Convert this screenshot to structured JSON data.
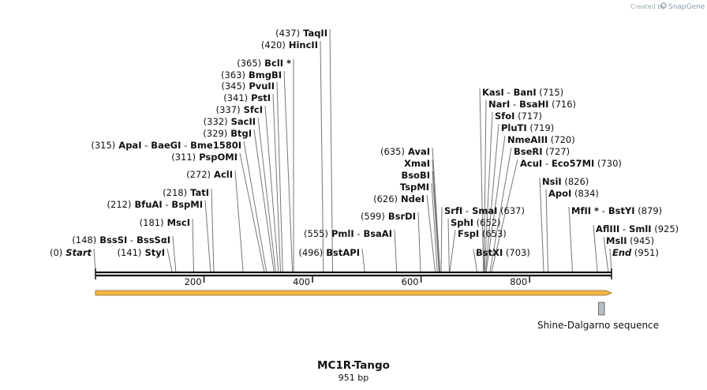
{
  "credit": {
    "prefix": "Created by",
    "brand": "SnapGene"
  },
  "sequence": {
    "name": "MC1R-Tango",
    "length_label": "951 bp",
    "length": 951
  },
  "axis": {
    "ticks": [
      200,
      400,
      600,
      800
    ]
  },
  "feature": {
    "label": "Shine-Dalgarno sequence",
    "start": 927,
    "end": 938
  },
  "cut_sites": [
    {
      "pos": 0,
      "parts": [
        {
          "t": "(0)",
          "s": "pos"
        },
        {
          "t": "Start",
          "s": "ital"
        }
      ]
    },
    {
      "pos": 141,
      "parts": [
        {
          "t": "(141)",
          "s": "pos"
        },
        {
          "t": "StyI",
          "s": "enz"
        }
      ]
    },
    {
      "pos": 148,
      "parts": [
        {
          "t": "(148)",
          "s": "pos"
        },
        {
          "t": "BssSI",
          "s": "enz"
        },
        {
          "t": "-",
          "s": "pos"
        },
        {
          "t": "BssSαI",
          "s": "enz"
        }
      ]
    },
    {
      "pos": 181,
      "parts": [
        {
          "t": "(181)",
          "s": "pos"
        },
        {
          "t": "MscI",
          "s": "enz"
        }
      ]
    },
    {
      "pos": 212,
      "parts": [
        {
          "t": "(212)",
          "s": "pos"
        },
        {
          "t": "BfuAI",
          "s": "enz"
        },
        {
          "t": "-",
          "s": "pos"
        },
        {
          "t": "BspMI",
          "s": "enz"
        }
      ]
    },
    {
      "pos": 218,
      "parts": [
        {
          "t": "(218)",
          "s": "pos"
        },
        {
          "t": "TatI",
          "s": "enz"
        }
      ]
    },
    {
      "pos": 272,
      "parts": [
        {
          "t": "(272)",
          "s": "pos"
        },
        {
          "t": "AclI",
          "s": "enz"
        }
      ]
    },
    {
      "pos": 311,
      "parts": [
        {
          "t": "(311)",
          "s": "pos"
        },
        {
          "t": "PspOMI",
          "s": "enz"
        }
      ]
    },
    {
      "pos": 315,
      "parts": [
        {
          "t": "(315)",
          "s": "pos"
        },
        {
          "t": "ApaI",
          "s": "enz"
        },
        {
          "t": "-",
          "s": "pos"
        },
        {
          "t": "BaeGI",
          "s": "enz"
        },
        {
          "t": "-",
          "s": "pos"
        },
        {
          "t": "Bme1580I",
          "s": "enz"
        }
      ]
    },
    {
      "pos": 329,
      "parts": [
        {
          "t": "(329)",
          "s": "pos"
        },
        {
          "t": "BtgI",
          "s": "enz"
        }
      ]
    },
    {
      "pos": 332,
      "parts": [
        {
          "t": "(332)",
          "s": "pos"
        },
        {
          "t": "SacII",
          "s": "enz"
        }
      ]
    },
    {
      "pos": 337,
      "parts": [
        {
          "t": "(337)",
          "s": "pos"
        },
        {
          "t": "SfcI",
          "s": "enz"
        }
      ]
    },
    {
      "pos": 341,
      "parts": [
        {
          "t": "(341)",
          "s": "pos"
        },
        {
          "t": "PstI",
          "s": "enz"
        }
      ]
    },
    {
      "pos": 345,
      "parts": [
        {
          "t": "(345)",
          "s": "pos"
        },
        {
          "t": "PvuII",
          "s": "enz"
        }
      ]
    },
    {
      "pos": 363,
      "parts": [
        {
          "t": "(363)",
          "s": "pos"
        },
        {
          "t": "BmgBI",
          "s": "enz"
        }
      ]
    },
    {
      "pos": 365,
      "parts": [
        {
          "t": "(365)",
          "s": "pos"
        },
        {
          "t": "BclI *",
          "s": "enz"
        }
      ]
    },
    {
      "pos": 420,
      "parts": [
        {
          "t": "(420)",
          "s": "pos"
        },
        {
          "t": "HincII",
          "s": "enz"
        }
      ]
    },
    {
      "pos": 437,
      "parts": [
        {
          "t": "(437)",
          "s": "pos"
        },
        {
          "t": "TaqII",
          "s": "enz"
        }
      ]
    },
    {
      "pos": 496,
      "parts": [
        {
          "t": "(496)",
          "s": "pos"
        },
        {
          "t": "BstAPI",
          "s": "enz"
        }
      ]
    },
    {
      "pos": 555,
      "parts": [
        {
          "t": "(555)",
          "s": "pos"
        },
        {
          "t": "PmlI",
          "s": "enz"
        },
        {
          "t": "-",
          "s": "pos"
        },
        {
          "t": "BsaAI",
          "s": "enz"
        }
      ]
    },
    {
      "pos": 599,
      "parts": [
        {
          "t": "(599)",
          "s": "pos"
        },
        {
          "t": "BsrDI",
          "s": "enz"
        }
      ]
    },
    {
      "pos": 626,
      "parts": [
        {
          "t": "(626)",
          "s": "pos"
        },
        {
          "t": "NdeI",
          "s": "enz"
        }
      ]
    },
    {
      "pos": 630,
      "parts": [
        {
          "t": "TspMI",
          "s": "enz"
        }
      ]
    },
    {
      "pos": 633,
      "parts": [
        {
          "t": "BsoBI",
          "s": "enz"
        }
      ]
    },
    {
      "pos": 634,
      "parts": [
        {
          "t": "XmaI",
          "s": "enz"
        }
      ]
    },
    {
      "pos": 635,
      "parts": [
        {
          "t": "(635)",
          "s": "pos"
        },
        {
          "t": "AvaI",
          "s": "enz"
        }
      ]
    },
    {
      "pos": 637,
      "parts": [
        {
          "t": "SrfI",
          "s": "enz"
        },
        {
          "t": "-",
          "s": "pos"
        },
        {
          "t": "SmaI",
          "s": "enz"
        },
        {
          "t": "(637)",
          "s": "pos"
        }
      ]
    },
    {
      "pos": 652,
      "parts": [
        {
          "t": "SphI",
          "s": "enz"
        },
        {
          "t": "(652)",
          "s": "pos"
        }
      ]
    },
    {
      "pos": 653,
      "parts": [
        {
          "t": "FspI",
          "s": "enz"
        },
        {
          "t": "(653)",
          "s": "pos"
        }
      ]
    },
    {
      "pos": 703,
      "parts": [
        {
          "t": "BstXI",
          "s": "enz"
        },
        {
          "t": "(703)",
          "s": "pos"
        }
      ]
    },
    {
      "pos": 715,
      "parts": [
        {
          "t": "KasI",
          "s": "enz"
        },
        {
          "t": "-",
          "s": "pos"
        },
        {
          "t": "BanI",
          "s": "enz"
        },
        {
          "t": "(715)",
          "s": "pos"
        }
      ]
    },
    {
      "pos": 716,
      "parts": [
        {
          "t": "NarI",
          "s": "enz"
        },
        {
          "t": "-",
          "s": "pos"
        },
        {
          "t": "BsaHI",
          "s": "enz"
        },
        {
          "t": "(716)",
          "s": "pos"
        }
      ]
    },
    {
      "pos": 717,
      "parts": [
        {
          "t": "SfoI",
          "s": "enz"
        },
        {
          "t": "(717)",
          "s": "pos"
        }
      ]
    },
    {
      "pos": 719,
      "parts": [
        {
          "t": "PluTI",
          "s": "enz"
        },
        {
          "t": "(719)",
          "s": "pos"
        }
      ]
    },
    {
      "pos": 720,
      "parts": [
        {
          "t": "NmeAIII",
          "s": "enz"
        },
        {
          "t": "(720)",
          "s": "pos"
        }
      ]
    },
    {
      "pos": 727,
      "parts": [
        {
          "t": "BseRI",
          "s": "enz"
        },
        {
          "t": "(727)",
          "s": "pos"
        }
      ]
    },
    {
      "pos": 730,
      "parts": [
        {
          "t": "AcuI",
          "s": "enz"
        },
        {
          "t": "-",
          "s": "pos"
        },
        {
          "t": "Eco57MI",
          "s": "enz"
        },
        {
          "t": "(730)",
          "s": "pos"
        }
      ]
    },
    {
      "pos": 826,
      "parts": [
        {
          "t": "NsiI",
          "s": "enz"
        },
        {
          "t": "(826)",
          "s": "pos"
        }
      ]
    },
    {
      "pos": 834,
      "parts": [
        {
          "t": "ApoI",
          "s": "enz"
        },
        {
          "t": "(834)",
          "s": "pos"
        }
      ]
    },
    {
      "pos": 879,
      "parts": [
        {
          "t": "MfII *",
          "s": "enz"
        },
        {
          "t": "-",
          "s": "pos"
        },
        {
          "t": "BstYI",
          "s": "enz"
        },
        {
          "t": "(879)",
          "s": "pos"
        }
      ]
    },
    {
      "pos": 925,
      "parts": [
        {
          "t": "AflIII",
          "s": "enz"
        },
        {
          "t": "-",
          "s": "pos"
        },
        {
          "t": "SmlI",
          "s": "enz"
        },
        {
          "t": "(925)",
          "s": "pos"
        }
      ]
    },
    {
      "pos": 945,
      "parts": [
        {
          "t": "MslI",
          "s": "enz"
        },
        {
          "t": "(945)",
          "s": "pos"
        }
      ]
    },
    {
      "pos": 951,
      "parts": [
        {
          "t": "End",
          "s": "ital"
        },
        {
          "t": "(951)",
          "s": "pos"
        }
      ]
    }
  ],
  "colors": {
    "arrow_fill": "#f5b64a",
    "arrow_border": "#8a6a20",
    "feature_fill": "#b8bcc4",
    "backbone": "#111111"
  }
}
